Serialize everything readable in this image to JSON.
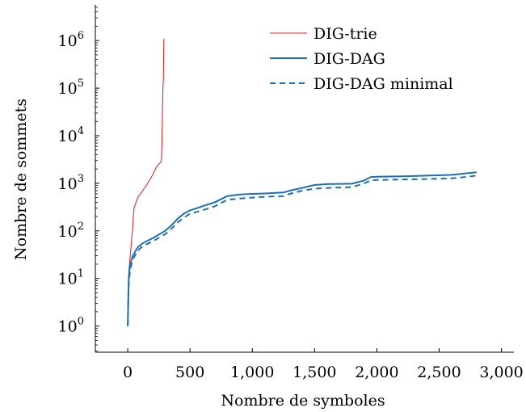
{
  "chart_data": {
    "type": "line",
    "title": "",
    "xlabel": "Nombre de symboles",
    "ylabel": "Nombre de sommets",
    "xlim": [
      -260,
      3100
    ],
    "ylim_log10": [
      -0.55,
      6.75
    ],
    "y_scale": "log",
    "x_ticks": [
      0,
      500,
      1000,
      1500,
      2000,
      2500,
      3000
    ],
    "x_tick_labels": [
      "0",
      "500",
      "1,000",
      "1,500",
      "2,000",
      "2,500",
      "3,000"
    ],
    "y_ticks": [
      1,
      10,
      100,
      1000,
      10000,
      100000,
      1000000
    ],
    "y_tick_labels": [
      {
        "base": "10",
        "exp": "0"
      },
      {
        "base": "10",
        "exp": "1"
      },
      {
        "base": "10",
        "exp": "2"
      },
      {
        "base": "10",
        "exp": "3"
      },
      {
        "base": "10",
        "exp": "4"
      },
      {
        "base": "10",
        "exp": "5"
      },
      {
        "base": "10",
        "exp": "6"
      }
    ],
    "grid": false,
    "legend_position": "top-right",
    "series": [
      {
        "name": "DIG-trie",
        "color": "#e8262a",
        "style": "solid",
        "points": [
          [
            0,
            1
          ],
          [
            5,
            5
          ],
          [
            10,
            15
          ],
          [
            20,
            30
          ],
          [
            30,
            60
          ],
          [
            40,
            120
          ],
          [
            50,
            300
          ],
          [
            80,
            500
          ],
          [
            120,
            700
          ],
          [
            160,
            1000
          ],
          [
            200,
            1500
          ],
          [
            230,
            2200
          ],
          [
            260,
            2700
          ],
          [
            270,
            3000
          ],
          [
            275,
            7000
          ],
          [
            278,
            20000
          ],
          [
            282,
            100000
          ],
          [
            286,
            150000
          ],
          [
            290,
            1100000
          ]
        ]
      },
      {
        "name": "DIG-DAG",
        "color": "#1f6fb5",
        "style": "solid",
        "points": [
          [
            0,
            1
          ],
          [
            5,
            5
          ],
          [
            10,
            12
          ],
          [
            20,
            20
          ],
          [
            40,
            30
          ],
          [
            80,
            45
          ],
          [
            120,
            55
          ],
          [
            200,
            70
          ],
          [
            300,
            100
          ],
          [
            350,
            130
          ],
          [
            400,
            180
          ],
          [
            450,
            230
          ],
          [
            500,
            270
          ],
          [
            600,
            330
          ],
          [
            700,
            400
          ],
          [
            800,
            540
          ],
          [
            900,
            580
          ],
          [
            1000,
            600
          ],
          [
            1100,
            610
          ],
          [
            1250,
            640
          ],
          [
            1300,
            700
          ],
          [
            1400,
            800
          ],
          [
            1500,
            920
          ],
          [
            1600,
            960
          ],
          [
            1800,
            980
          ],
          [
            1900,
            1150
          ],
          [
            1950,
            1350
          ],
          [
            2000,
            1380
          ],
          [
            2200,
            1400
          ],
          [
            2400,
            1450
          ],
          [
            2600,
            1500
          ],
          [
            2700,
            1600
          ],
          [
            2800,
            1700
          ]
        ]
      },
      {
        "name": "DIG-DAG minimal",
        "color": "#1f6fb5",
        "style": "dashed",
        "points": [
          [
            0,
            1
          ],
          [
            5,
            4
          ],
          [
            10,
            9
          ],
          [
            20,
            16
          ],
          [
            40,
            25
          ],
          [
            80,
            38
          ],
          [
            120,
            48
          ],
          [
            200,
            60
          ],
          [
            300,
            85
          ],
          [
            350,
            110
          ],
          [
            400,
            150
          ],
          [
            450,
            190
          ],
          [
            500,
            230
          ],
          [
            600,
            270
          ],
          [
            700,
            330
          ],
          [
            800,
            450
          ],
          [
            900,
            480
          ],
          [
            1000,
            500
          ],
          [
            1100,
            520
          ],
          [
            1250,
            540
          ],
          [
            1300,
            600
          ],
          [
            1400,
            700
          ],
          [
            1500,
            770
          ],
          [
            1600,
            800
          ],
          [
            1800,
            830
          ],
          [
            1900,
            1000
          ],
          [
            1950,
            1150
          ],
          [
            2000,
            1180
          ],
          [
            2200,
            1200
          ],
          [
            2400,
            1230
          ],
          [
            2600,
            1270
          ],
          [
            2700,
            1350
          ],
          [
            2800,
            1450
          ]
        ]
      }
    ]
  }
}
